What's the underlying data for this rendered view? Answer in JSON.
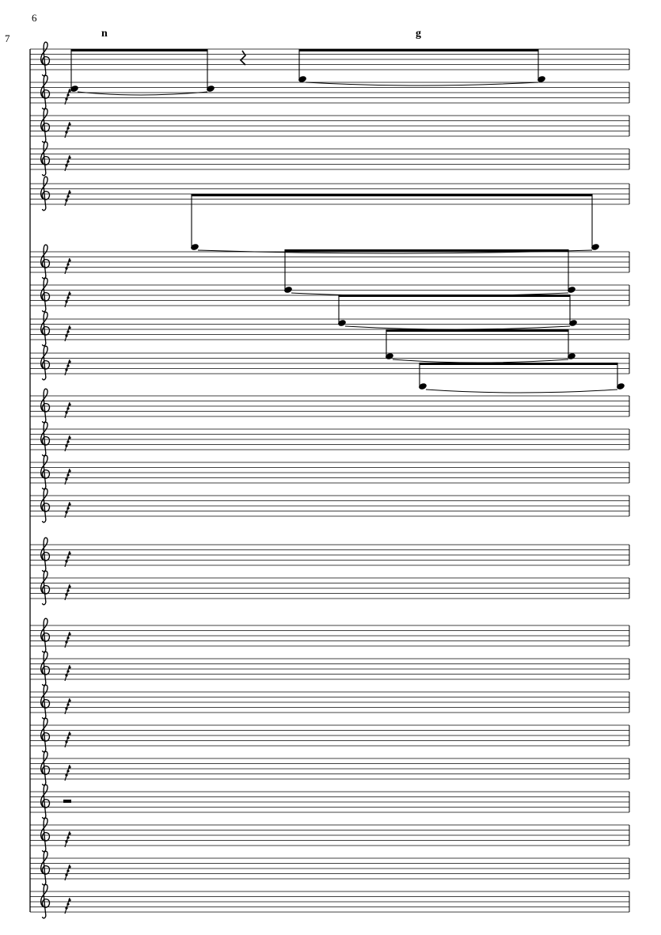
{
  "page": {
    "page_number": "6",
    "measure_number": "7",
    "rehearsal_marks": [
      "n",
      "g"
    ]
  }
}
